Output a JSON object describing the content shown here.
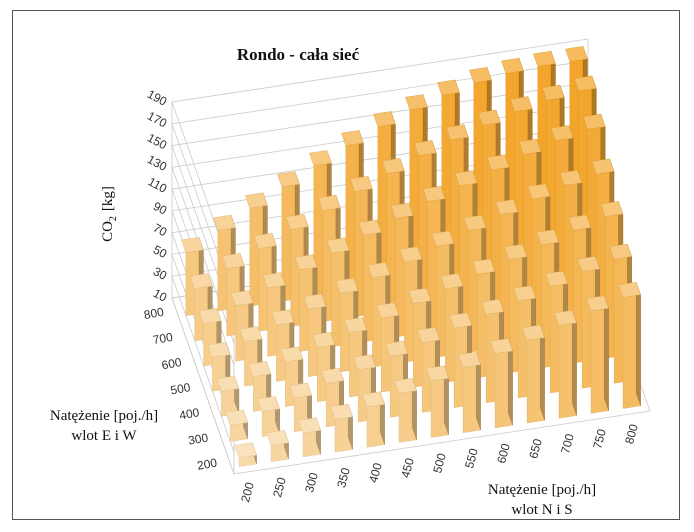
{
  "chart_data": {
    "type": "bar3d",
    "title": "Rondo - cała sieć",
    "zlabel_main": "CO",
    "zlabel_sub": "2",
    "zlabel_unit": "[kg]",
    "xlabel_line1": "Natężenie [poj./h]",
    "xlabel_line2": "wlot N i S",
    "ylabel_line1": "Natężenie [poj./h]",
    "ylabel_line2": "wlot E i W",
    "x_categories": [
      "200",
      "250",
      "300",
      "350",
      "400",
      "450",
      "500",
      "550",
      "600",
      "650",
      "700",
      "750",
      "800"
    ],
    "y_categories": [
      "200",
      "300",
      "400",
      "500",
      "600",
      "700",
      "800"
    ],
    "z_ticks": [
      "10",
      "30",
      "50",
      "70",
      "90",
      "110",
      "130",
      "150",
      "170",
      "190"
    ],
    "zlim": [
      10,
      190
    ],
    "values": [
      [
        18,
        25,
        32,
        40,
        47,
        55,
        62,
        70,
        78,
        86,
        95,
        104,
        112
      ],
      [
        25,
        33,
        41,
        50,
        58,
        66,
        74,
        83,
        91,
        99,
        108,
        117,
        124
      ],
      [
        33,
        42,
        51,
        60,
        69,
        78,
        87,
        96,
        105,
        114,
        123,
        132,
        140
      ],
      [
        41,
        51,
        62,
        72,
        82,
        92,
        102,
        112,
        122,
        132,
        142,
        150,
        156
      ],
      [
        49,
        61,
        73,
        85,
        96,
        108,
        119,
        130,
        140,
        150,
        160,
        168,
        174
      ],
      [
        58,
        72,
        86,
        99,
        112,
        125,
        137,
        149,
        159,
        168,
        176,
        182,
        186
      ],
      [
        68,
        84,
        100,
        115,
        130,
        144,
        157,
        168,
        177,
        184,
        188,
        190,
        190
      ]
    ],
    "colors": {
      "front": "#f8dcb0",
      "back": "#f3a52a",
      "grid": "#c9c9c9"
    }
  }
}
